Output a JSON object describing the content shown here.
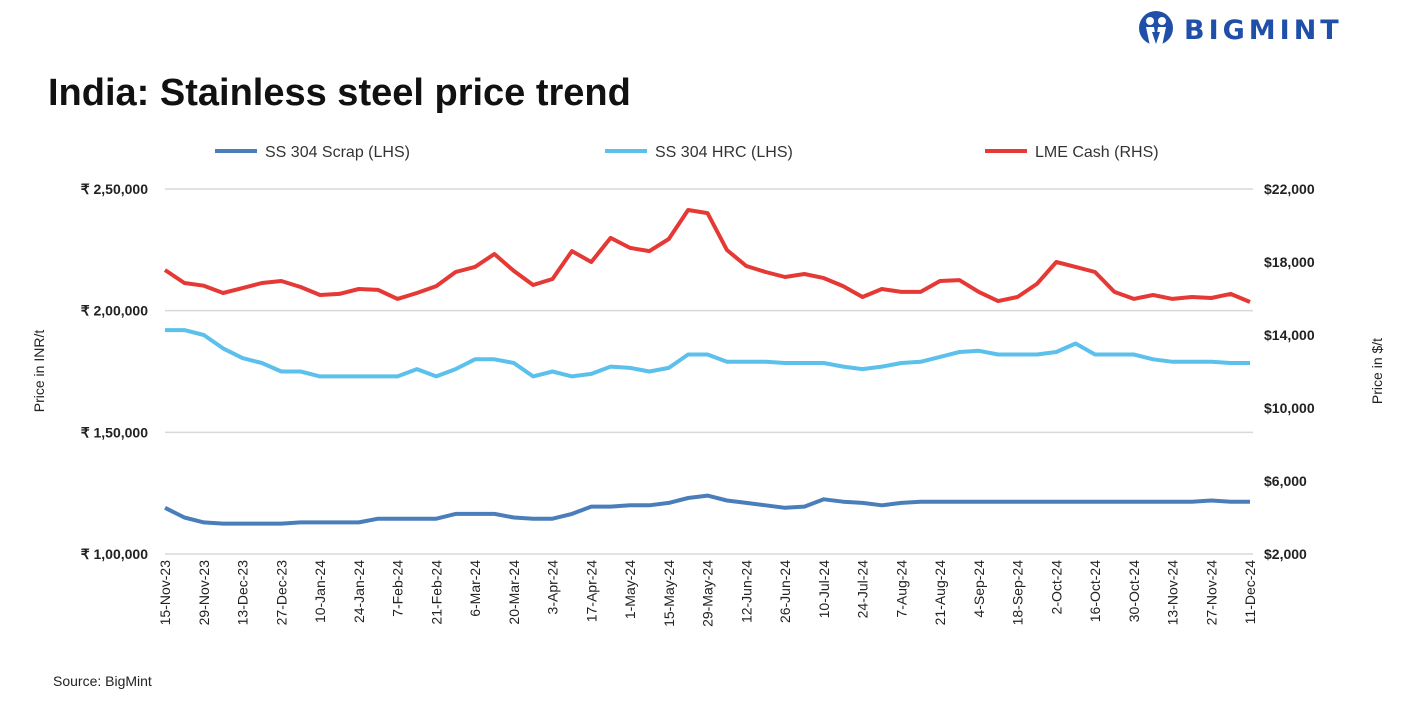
{
  "header": {
    "title": "India: Stainless steel price trend",
    "logo_text": "BIGMINT"
  },
  "footer": {
    "source": "Source: BigMint"
  },
  "chart_data": {
    "type": "line",
    "title": "India: Stainless steel price trend",
    "ylabel_left": "Price in INR/t",
    "ylabel_right": "Price in $/t",
    "ylim_left": [
      100000,
      250000
    ],
    "ylim_right": [
      2000,
      22000
    ],
    "yticks_left": [
      "₹ 1,00,000",
      "₹ 1,50,000",
      "₹ 2,00,000",
      "₹ 2,50,000"
    ],
    "yticks_right": [
      "$2,000",
      "$6,000",
      "$10,000",
      "$14,000",
      "$18,000",
      "$22,000"
    ],
    "grid": true,
    "legend_position": "top",
    "x_tick_labels": [
      "15-Nov-23",
      "29-Nov-23",
      "13-Dec-23",
      "27-Dec-23",
      "10-Jan-24",
      "24-Jan-24",
      "7-Feb-24",
      "21-Feb-24",
      "6-Mar-24",
      "20-Mar-24",
      "3-Apr-24",
      "17-Apr-24",
      "1-May-24",
      "15-May-24",
      "29-May-24",
      "12-Jun-24",
      "26-Jun-24",
      "10-Jul-24",
      "24-Jul-24",
      "7-Aug-24",
      "21-Aug-24",
      "4-Sep-24",
      "18-Sep-24",
      "2-Oct-24",
      "16-Oct-24",
      "30-Oct-24",
      "13-Nov-24",
      "27-Nov-24",
      "11-Dec-24"
    ],
    "series": [
      {
        "name": "SS 304 Scrap (LHS)",
        "axis": "left",
        "color": "#4a7ebb",
        "values": [
          119000,
          115000,
          113000,
          112500,
          112500,
          112500,
          112500,
          113000,
          113000,
          113000,
          113000,
          114500,
          114500,
          114500,
          114500,
          116500,
          116500,
          116500,
          115000,
          114500,
          114500,
          116500,
          119500,
          119500,
          120000,
          120000,
          121000,
          123000,
          124000,
          122000,
          121000,
          120000,
          119000,
          119500,
          122500,
          121500,
          121000,
          120000,
          121000,
          121500,
          121500,
          121500,
          121500,
          121500,
          121500,
          121500,
          121500,
          121500,
          121500,
          121500,
          121500,
          121500,
          121500,
          121500,
          122000,
          121500,
          121500
        ]
      },
      {
        "name": "SS 304 HRC (LHS)",
        "axis": "left",
        "color": "#5bc0eb",
        "values": [
          192000,
          192000,
          190000,
          184500,
          180500,
          178500,
          175000,
          175000,
          173000,
          173000,
          173000,
          173000,
          173000,
          176000,
          173000,
          176000,
          180000,
          180000,
          178500,
          173000,
          175000,
          173000,
          174000,
          177000,
          176500,
          175000,
          176500,
          182000,
          182000,
          179000,
          179000,
          179000,
          178500,
          178500,
          178500,
          177000,
          176000,
          177000,
          178500,
          179000,
          181000,
          183000,
          183500,
          182000,
          182000,
          182000,
          183000,
          186500,
          182000,
          182000,
          182000,
          180000,
          179000,
          179000,
          179000,
          178500,
          178500
        ]
      },
      {
        "name": "LME Cash (RHS)",
        "axis": "right",
        "color": "#e53935",
        "values": [
          17560,
          16850,
          16700,
          16300,
          16570,
          16850,
          16960,
          16630,
          16190,
          16250,
          16520,
          16470,
          15980,
          16300,
          16680,
          17450,
          17730,
          18440,
          17510,
          16740,
          17070,
          18600,
          18000,
          19320,
          18770,
          18600,
          19260,
          20850,
          20680,
          18660,
          17780,
          17450,
          17180,
          17340,
          17120,
          16680,
          16080,
          16520,
          16360,
          16360,
          16960,
          17010,
          16360,
          15860,
          16080,
          16800,
          18000,
          17730,
          17450,
          16360,
          15980,
          16190,
          15980,
          16080,
          16030,
          16250,
          15810
        ]
      }
    ]
  }
}
